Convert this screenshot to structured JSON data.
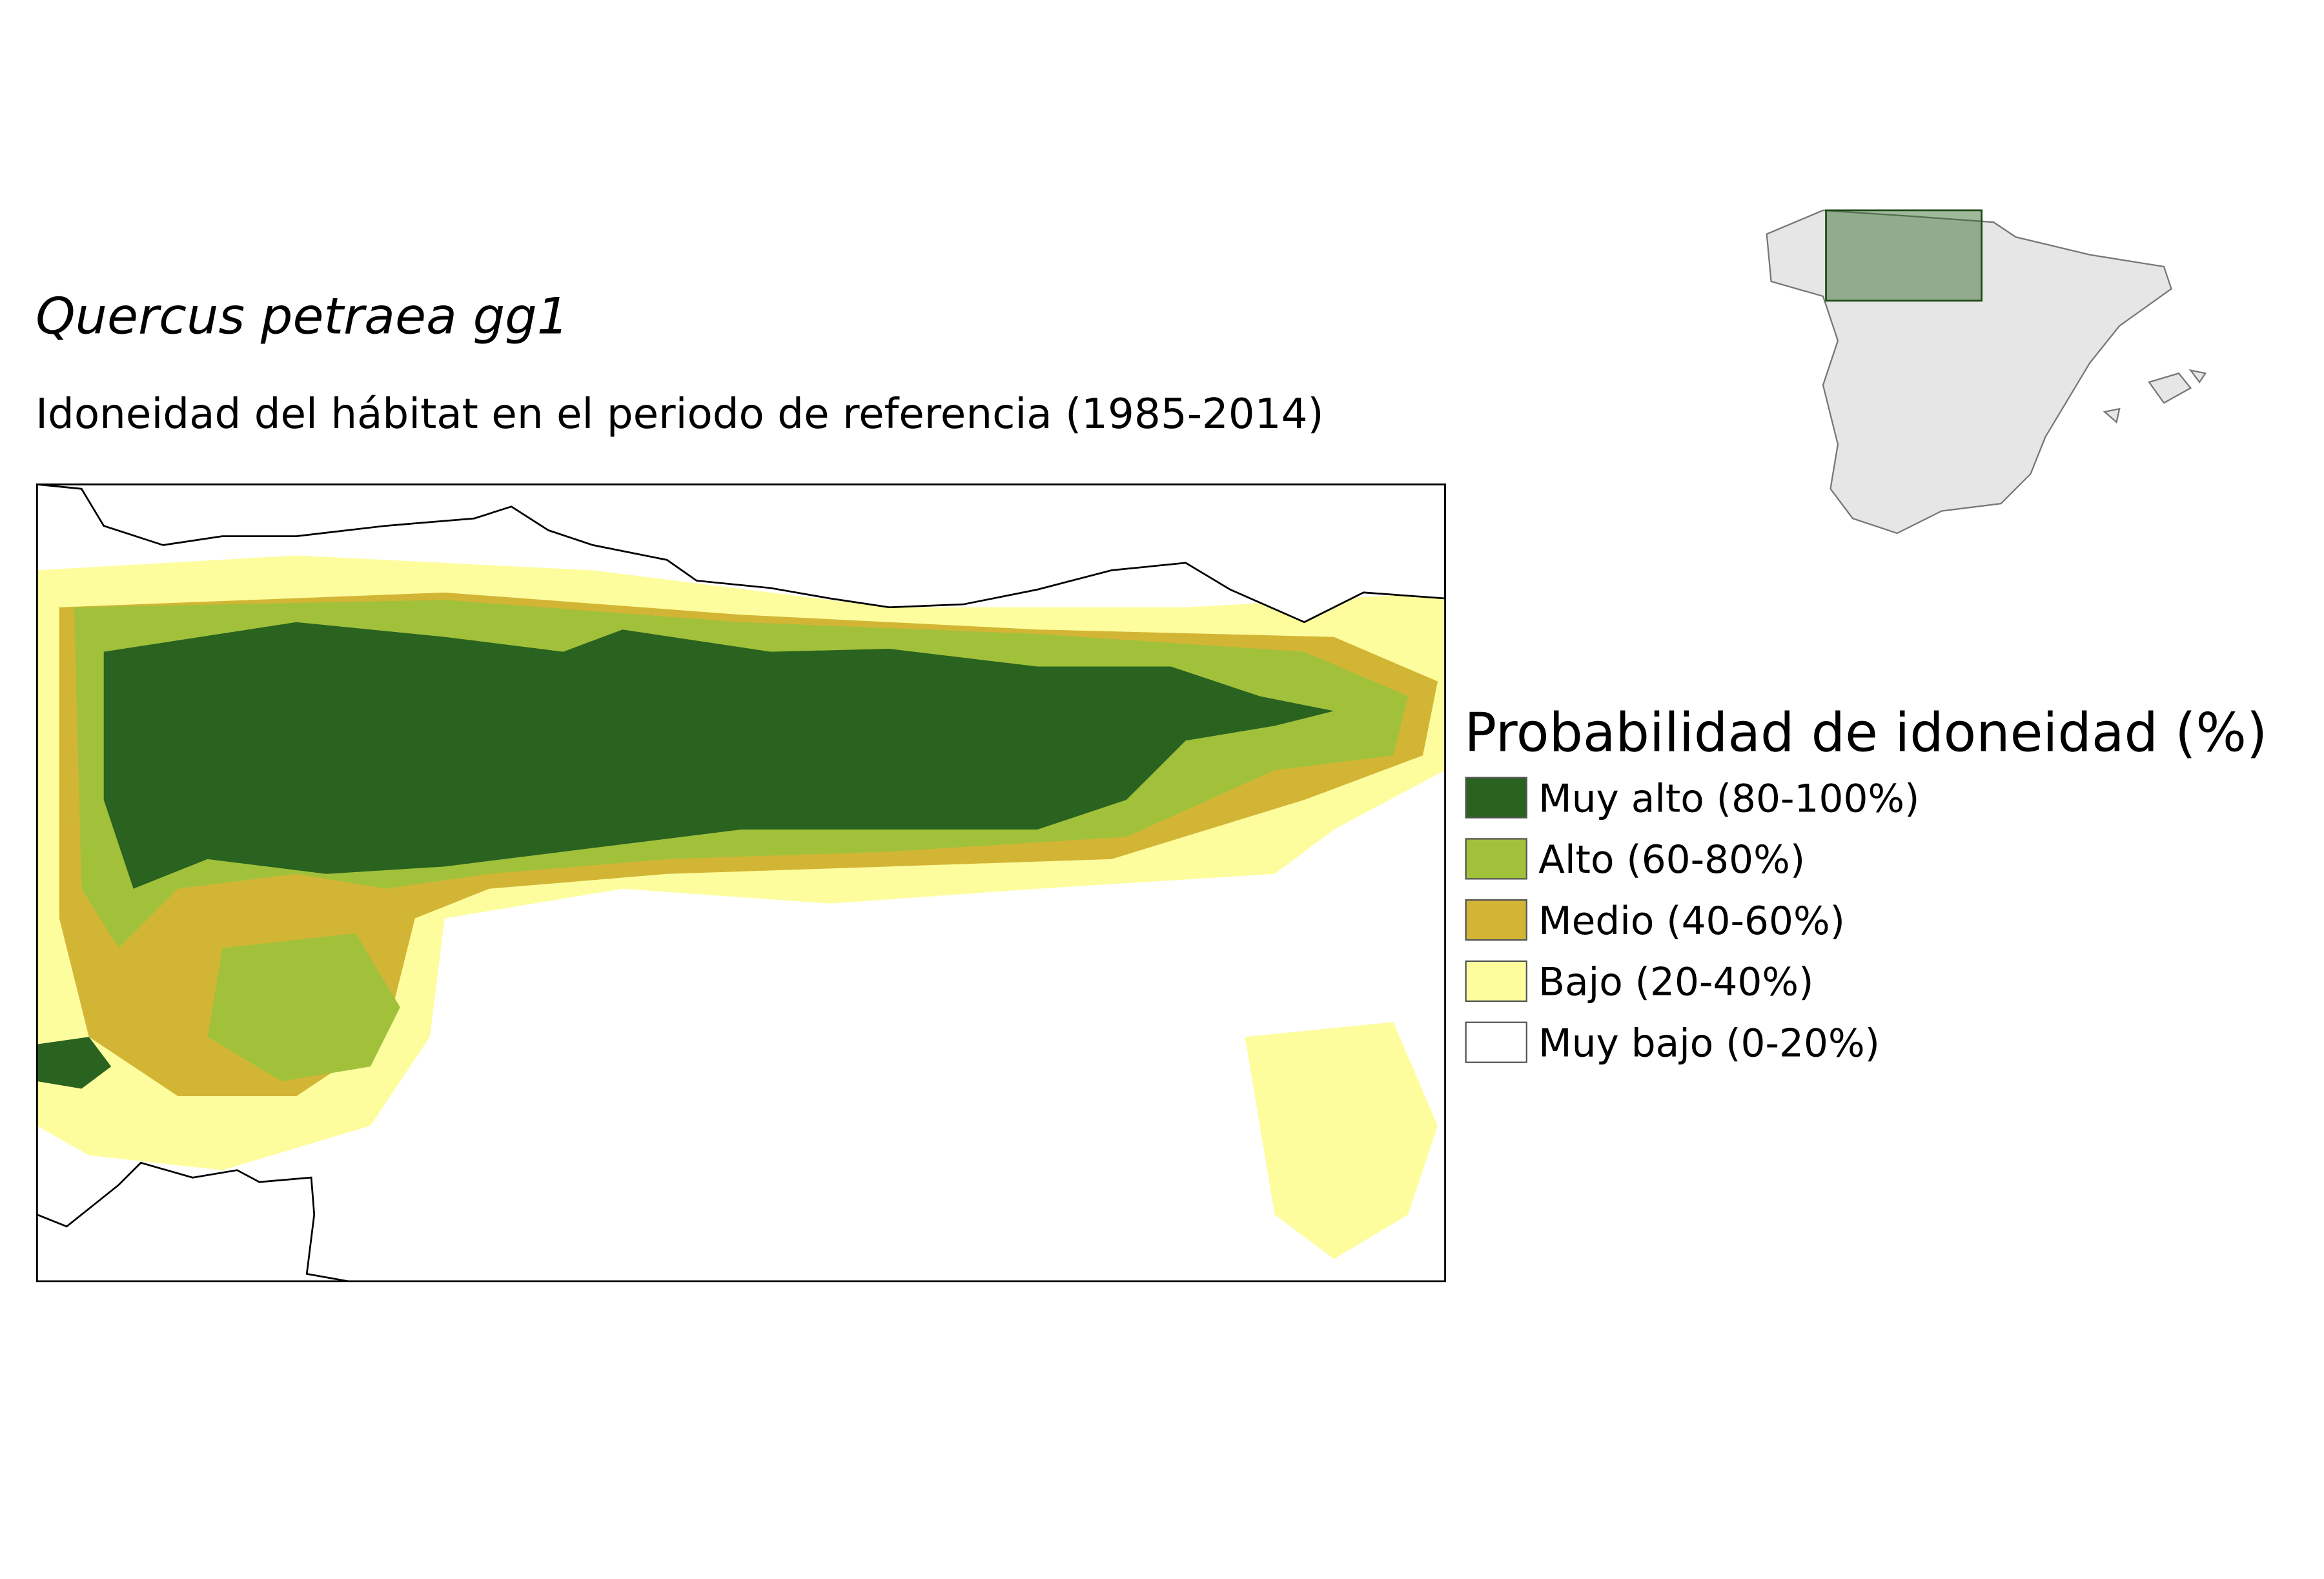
{
  "header": {
    "title": "Quercus petraea gg1",
    "subtitle": "Idoneidad del hábitat en el periodo de referencia (1985-2014)"
  },
  "legend": {
    "title": "Probabilidad de idoneidad (%)",
    "items": [
      {
        "label": "Muy alto (80-100%)",
        "color": "#2a6320"
      },
      {
        "label": "Alto (60-80%)",
        "color": "#a2c13b"
      },
      {
        "label": "Medio (40-60%)",
        "color": "#d3b535"
      },
      {
        "label": "Bajo (20-40%)",
        "color": "#fdfd9e"
      },
      {
        "label": "Muy bajo (0-20%)",
        "color": "#ffffff"
      }
    ]
  }
}
